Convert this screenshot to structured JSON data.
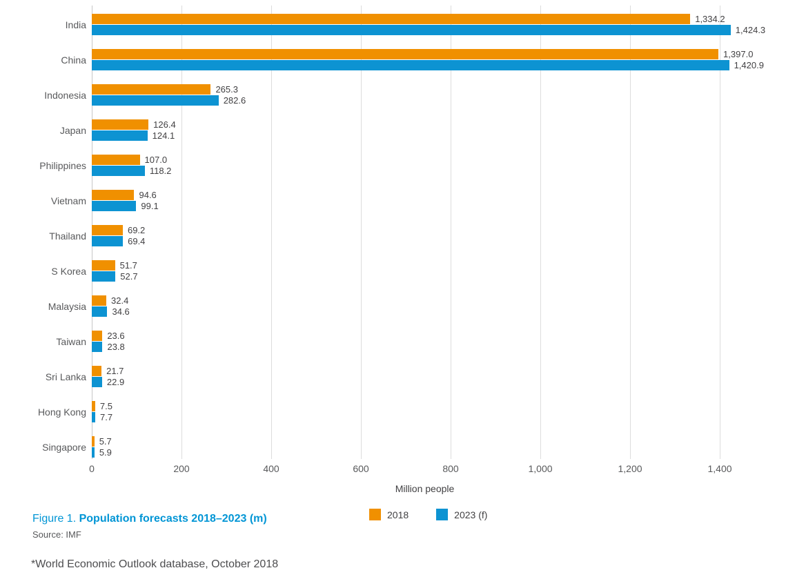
{
  "chart_data": {
    "type": "bar",
    "orientation": "horizontal",
    "title": "Figure 1. Population forecasts 2018–2023 (m)",
    "xlabel": "Million people",
    "categories": [
      "India",
      "China",
      "Indonesia",
      "Japan",
      "Philippines",
      "Vietnam",
      "Thailand",
      "S Korea",
      "Malaysia",
      "Taiwan",
      "Sri Lanka",
      "Hong Kong",
      "Singapore"
    ],
    "series": [
      {
        "name": "2018",
        "color": "#F09000",
        "values": [
          1334.2,
          1397.0,
          265.3,
          126.4,
          107.0,
          94.6,
          69.2,
          51.7,
          32.4,
          23.6,
          21.7,
          7.5,
          5.7
        ],
        "labels": [
          "1,334.2",
          "1,397.0",
          "265.3",
          "126.4",
          "107.0",
          "94.6",
          "69.2",
          "51.7",
          "32.4",
          "23.6",
          "21.7",
          "7.5",
          "5.7"
        ]
      },
      {
        "name": "2023 (f)",
        "color": "#0D93D2",
        "values": [
          1424.3,
          1420.9,
          282.6,
          124.1,
          118.2,
          99.1,
          69.4,
          52.7,
          34.6,
          23.8,
          22.9,
          7.7,
          5.9
        ],
        "labels": [
          "1,424.3",
          "1,420.9",
          "282.6",
          "124.1",
          "118.2",
          "99.1",
          "69.4",
          "52.7",
          "34.6",
          "23.8",
          "22.9",
          "7.7",
          "5.9"
        ]
      }
    ],
    "x_ticks": [
      0,
      200,
      400,
      600,
      800,
      1000,
      1200,
      1400
    ],
    "x_tick_labels": [
      "0",
      "200",
      "400",
      "600",
      "800",
      "1,000",
      "1,200",
      "1,400"
    ],
    "xlim": [
      0,
      1480
    ],
    "grid": "vertical-gridlines-on",
    "legend_position": "bottom-center"
  },
  "legend": {
    "items": [
      {
        "label": "2018",
        "color": "#F09000"
      },
      {
        "label": "2023 (f)",
        "color": "#0D93D2"
      }
    ]
  },
  "caption": {
    "prefix": "Figure 1. ",
    "main": "Population forecasts 2018–2023 (m)",
    "color": "#0095D5"
  },
  "source": "Source: IMF",
  "footnote": "*World Economic Outlook database, October 2018",
  "colors": {
    "bar_2018": "#F09000",
    "bar_2023": "#0D93D2",
    "gridline": "#DCDCDC",
    "axis_line": "#C6C6C6",
    "category_text": "#58595B",
    "value_text": "#414042"
  }
}
